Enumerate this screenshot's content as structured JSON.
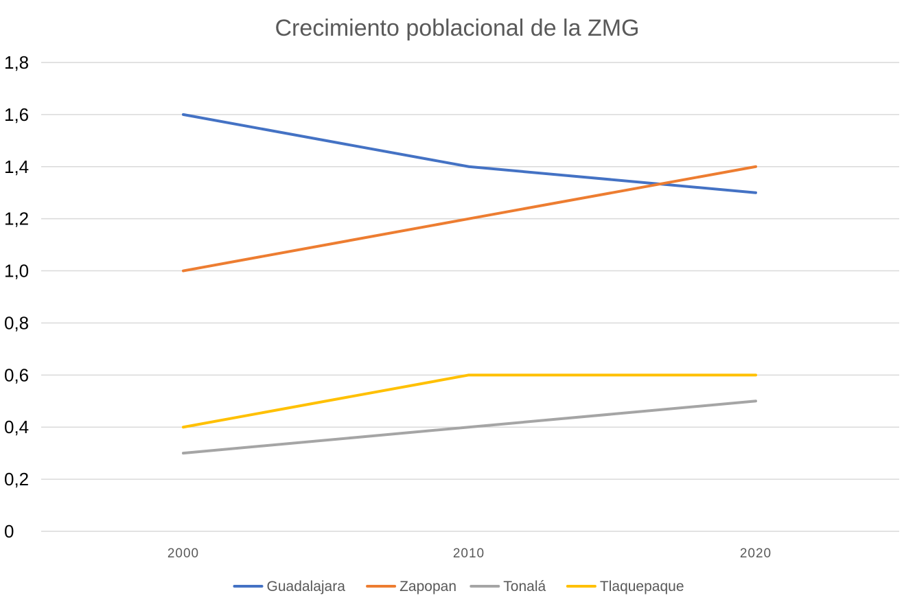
{
  "chart_data": {
    "type": "line",
    "title": "Crecimiento poblacional de la ZMG",
    "xlabel": "",
    "ylabel": "",
    "categories": [
      "2000",
      "2010",
      "2020"
    ],
    "ylim": [
      0,
      1.8
    ],
    "y_ticks": [
      "0",
      "0,2",
      "0,4",
      "0,6",
      "0,8",
      "1,0",
      "1,2",
      "1,4",
      "1,6",
      "1,8"
    ],
    "grid": true,
    "legend_position": "bottom",
    "series": [
      {
        "name": "Guadalajara",
        "color": "#4472c4",
        "values": [
          1.6,
          1.4,
          1.3
        ]
      },
      {
        "name": "Zapopan",
        "color": "#ed7d31",
        "values": [
          1.0,
          1.2,
          1.4
        ]
      },
      {
        "name": "Tonalá",
        "color": "#a5a5a5",
        "values": [
          0.3,
          0.4,
          0.5
        ]
      },
      {
        "name": "Tlaquepaque",
        "color": "#ffc000",
        "values": [
          0.4,
          0.6,
          0.6
        ]
      }
    ]
  }
}
